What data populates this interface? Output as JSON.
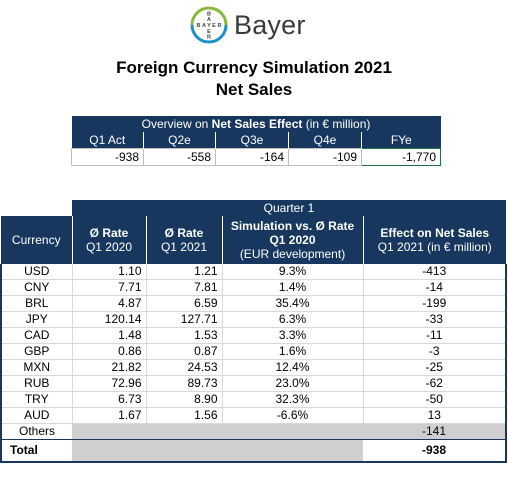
{
  "logo": {
    "name": "Bayer",
    "cross_text": "BAYER"
  },
  "title": {
    "line1": "Foreign Currency Simulation 2021",
    "line2": "Net Sales"
  },
  "overview": {
    "header_prefix": "Overview on ",
    "header_bold": "Net Sales Effect",
    "header_suffix": " (in € million)",
    "columns": [
      "Q1 Act",
      "Q2e",
      "Q3e",
      "Q4e",
      "FYe"
    ],
    "values": [
      "-938",
      "-558",
      "-164",
      "-109",
      "-1,770"
    ]
  },
  "main": {
    "quarter": "Quarter 1",
    "headers": {
      "currency": "Currency",
      "rate2020_bold": "Ø Rate",
      "rate2020_sub": "Q1 2020",
      "rate2021_bold": "Ø Rate",
      "rate2021_sub": "Q1 2021",
      "sim_bold": "Simulation vs. Ø Rate Q1 2020",
      "sim_sub": "(EUR development)",
      "effect_bold": "Effect on Net Sales",
      "effect_sub": "Q1 2021 (in € million)"
    },
    "rows": [
      {
        "currency": "USD",
        "r2020": "1.10",
        "r2021": "1.21",
        "sim": "9.3%",
        "effect": "-413"
      },
      {
        "currency": "CNY",
        "r2020": "7.71",
        "r2021": "7.81",
        "sim": "1.4%",
        "effect": "-14"
      },
      {
        "currency": "BRL",
        "r2020": "4.87",
        "r2021": "6.59",
        "sim": "35.4%",
        "effect": "-199"
      },
      {
        "currency": "JPY",
        "r2020": "120.14",
        "r2021": "127.71",
        "sim": "6.3%",
        "effect": "-33"
      },
      {
        "currency": "CAD",
        "r2020": "1.48",
        "r2021": "1.53",
        "sim": "3.3%",
        "effect": "-11"
      },
      {
        "currency": "GBP",
        "r2020": "0.86",
        "r2021": "0.87",
        "sim": "1.6%",
        "effect": "-3"
      },
      {
        "currency": "MXN",
        "r2020": "21.82",
        "r2021": "24.53",
        "sim": "12.4%",
        "effect": "-25"
      },
      {
        "currency": "RUB",
        "r2020": "72.96",
        "r2021": "89.73",
        "sim": "23.0%",
        "effect": "-62"
      },
      {
        "currency": "TRY",
        "r2020": "6.73",
        "r2021": "8.90",
        "sim": "32.3%",
        "effect": "-50"
      },
      {
        "currency": "AUD",
        "r2020": "1.67",
        "r2021": "1.56",
        "sim": "-6.6%",
        "effect": "13"
      }
    ],
    "others": {
      "label": "Others",
      "effect": "-141"
    },
    "total": {
      "label": "Total",
      "effect": "-938"
    }
  },
  "colors": {
    "header_navy": "#17375e",
    "grey_fill": "#d0cece",
    "logo_green": "#89b93b",
    "logo_blue": "#1f8fc9"
  }
}
